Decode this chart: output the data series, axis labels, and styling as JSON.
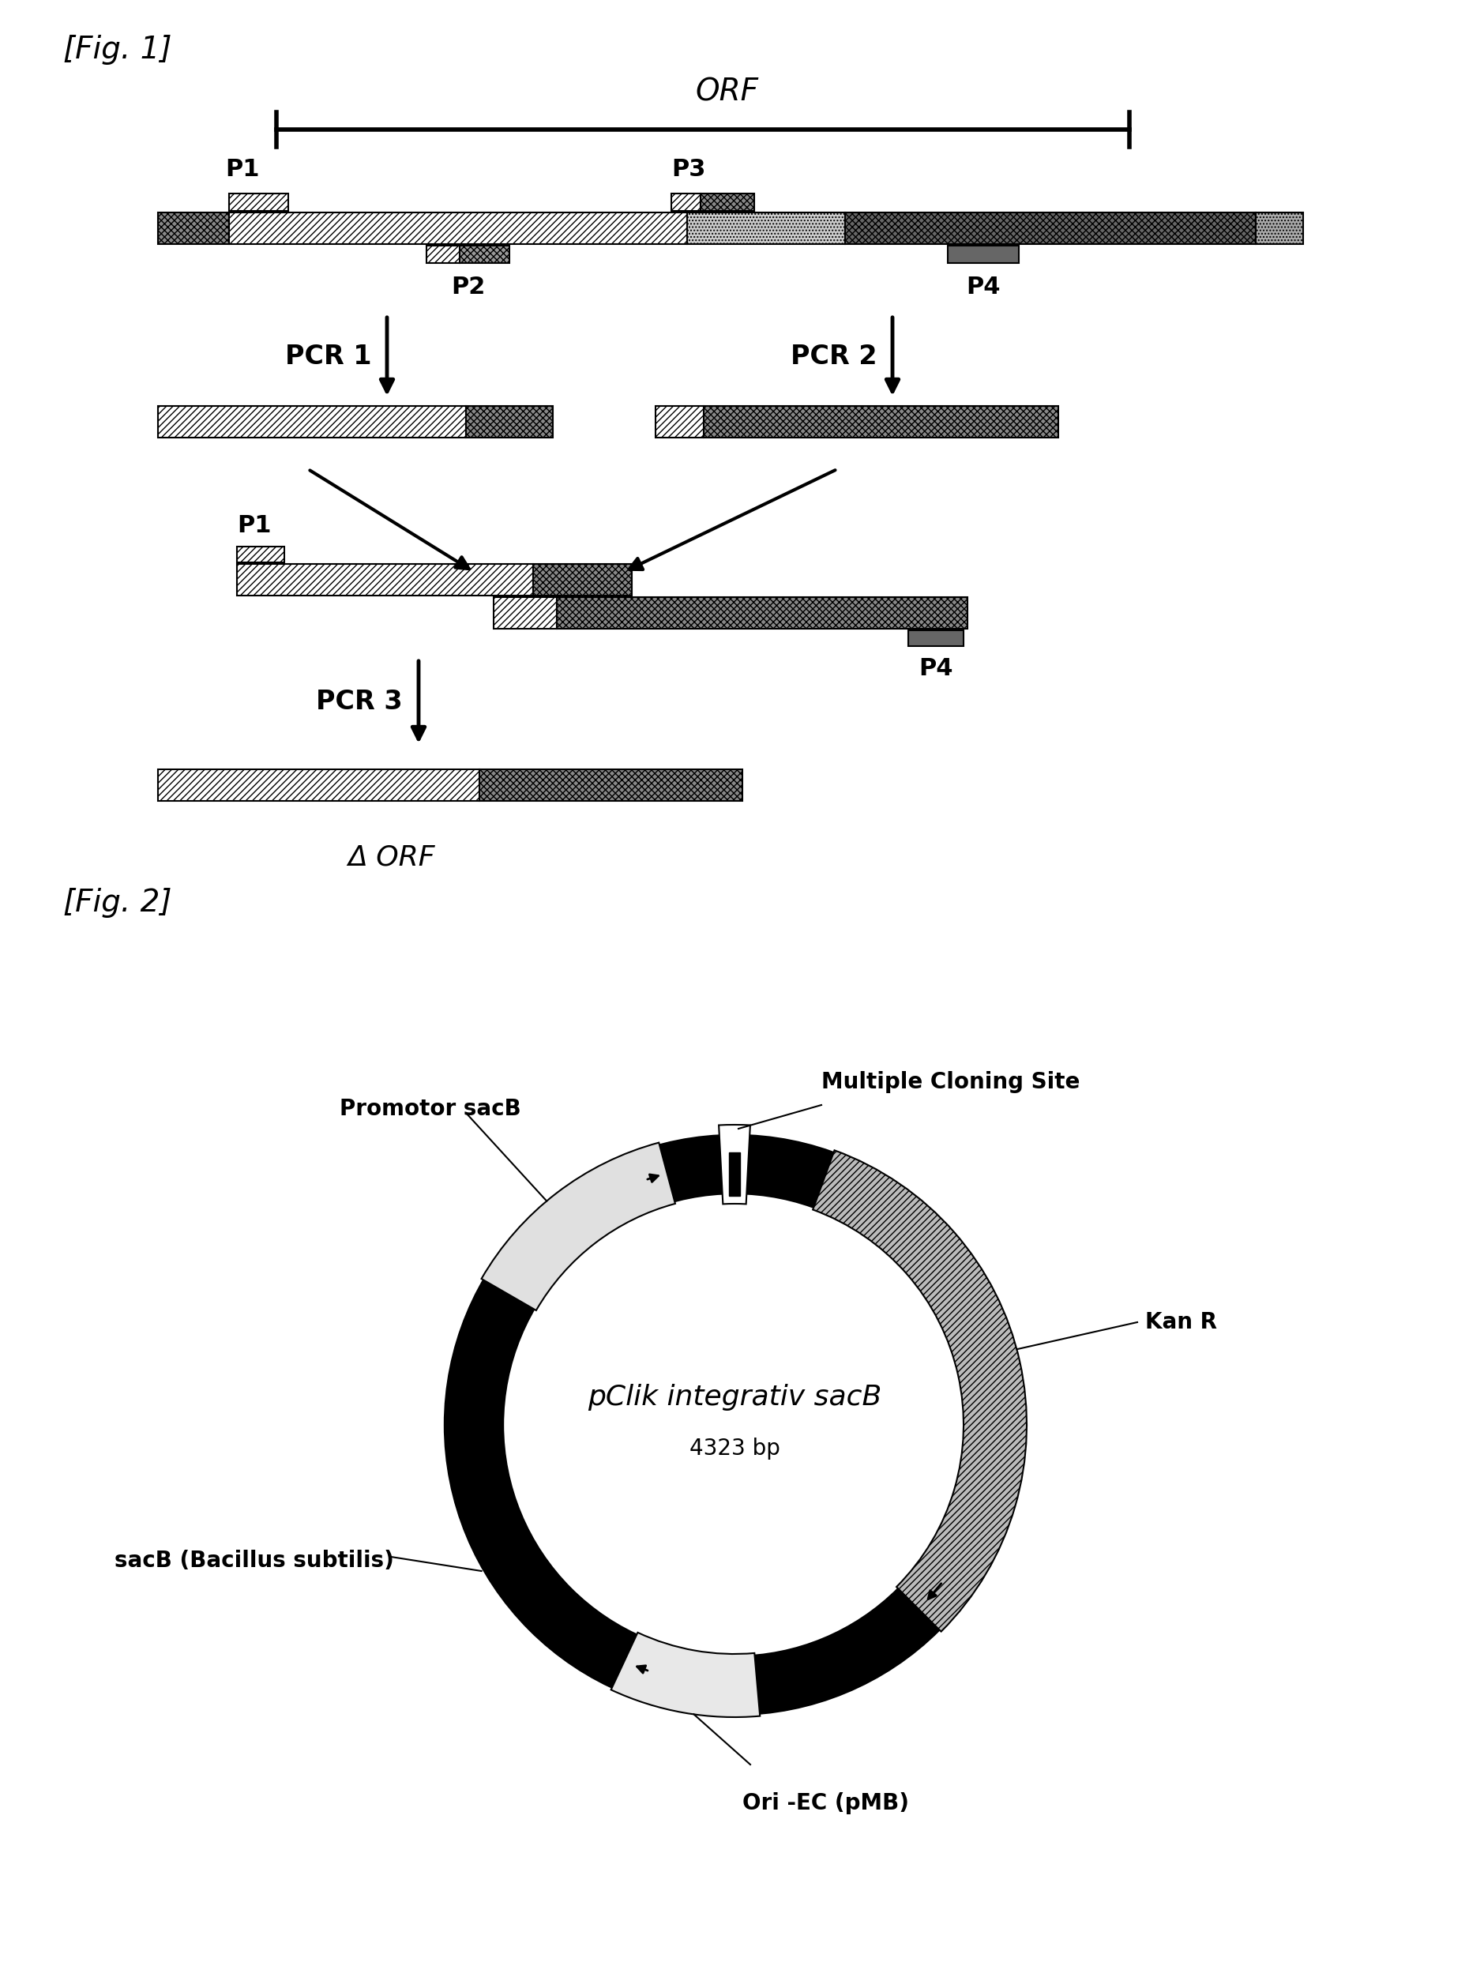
{
  "fig1_label": "[Fig. 1]",
  "fig2_label": "[Fig. 2]",
  "orf_label": "ORF",
  "delta_orf_label": "Δ ORF",
  "pcr1_label": "PCR 1",
  "pcr2_label": "PCR 2",
  "pcr3_label": "PCR 3",
  "p1_label": "P1",
  "p2_label": "P2",
  "p3_label": "P3",
  "p4_label": "P4",
  "plasmid_name": "pClik integrativ sacB",
  "plasmid_bp": "4323 bp",
  "promotor_label": "Promotor sacB",
  "mcs_label": "Multiple Cloning Site",
  "kanr_label": "Kan R",
  "sacb_label": "sacB (Bacillus subtilis)",
  "ori_label": "Ori -EC (pMB)",
  "background_color": "#ffffff"
}
